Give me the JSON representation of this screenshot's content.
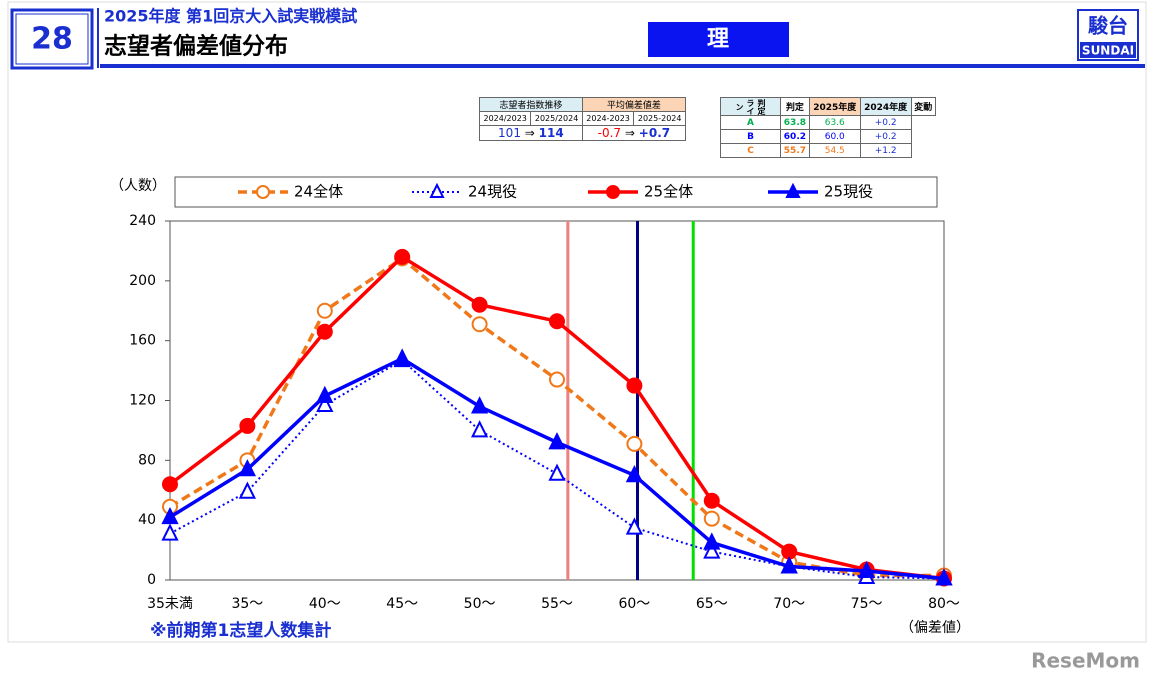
{
  "header": {
    "number": "28",
    "subtitle": "2025年度 第1回京大入試実戦模試",
    "title": "志望者偏差値分布",
    "subject": "理",
    "logo_top": "駿台",
    "logo_bottom": "SUNDAI"
  },
  "index_table": {
    "head": [
      "志望者指数推移",
      "平均偏差値差"
    ],
    "sub": [
      "2024/2023",
      "2025/2024",
      "2024-2023",
      "2025-2024"
    ],
    "index": [
      "101",
      "⇒",
      "114"
    ],
    "diff": [
      "-0.7",
      "⇒",
      "+0.7"
    ]
  },
  "judgment_table": {
    "side": "判定ライン",
    "head": [
      "判定",
      "2025年度",
      "2024年度",
      "変動"
    ],
    "rows": [
      {
        "grade": "A",
        "y2025": 63.8,
        "y2024": "63.6",
        "change": "+0.2",
        "color": "#00b050"
      },
      {
        "grade": "B",
        "y2025": 60.2,
        "y2024": "60.0",
        "change": "+0.2",
        "color": "#0000ff"
      },
      {
        "grade": "C",
        "y2025": 55.7,
        "y2024": "54.5",
        "change": "+1.2",
        "color": "#f07818"
      }
    ]
  },
  "chart_data": {
    "type": "line",
    "y_label": "（人数）",
    "x_label": "（偏差値）",
    "note": "※前期第1志望人数集計",
    "categories": [
      "35未満",
      "35〜",
      "40〜",
      "45〜",
      "50〜",
      "55〜",
      "60〜",
      "65〜",
      "70〜",
      "75〜",
      "80〜"
    ],
    "ylim": [
      0,
      240
    ],
    "yticks": [
      0,
      40,
      80,
      120,
      160,
      200,
      240
    ],
    "series": [
      {
        "name": "24全体",
        "color": "#f07818",
        "line_style": "dashed",
        "marker": "circle-open",
        "values": [
          49,
          80,
          180,
          215,
          171,
          134,
          91,
          41,
          12,
          3,
          3
        ]
      },
      {
        "name": "24現役",
        "color": "#0000ff",
        "line_style": "dotted",
        "marker": "triangle-open",
        "values": [
          31,
          59,
          117,
          147,
          100,
          71,
          35,
          19,
          9,
          2,
          1
        ]
      },
      {
        "name": "25全体",
        "color": "#ff0000",
        "line_style": "solid",
        "marker": "circle",
        "values": [
          64,
          103,
          166,
          216,
          184,
          173,
          130,
          53,
          19,
          7,
          1
        ]
      },
      {
        "name": "25現役",
        "color": "#0000ff",
        "line_style": "solid",
        "marker": "triangle",
        "values": [
          42,
          74,
          123,
          148,
          116,
          92,
          70,
          25,
          9,
          6,
          1
        ]
      }
    ]
  }
}
